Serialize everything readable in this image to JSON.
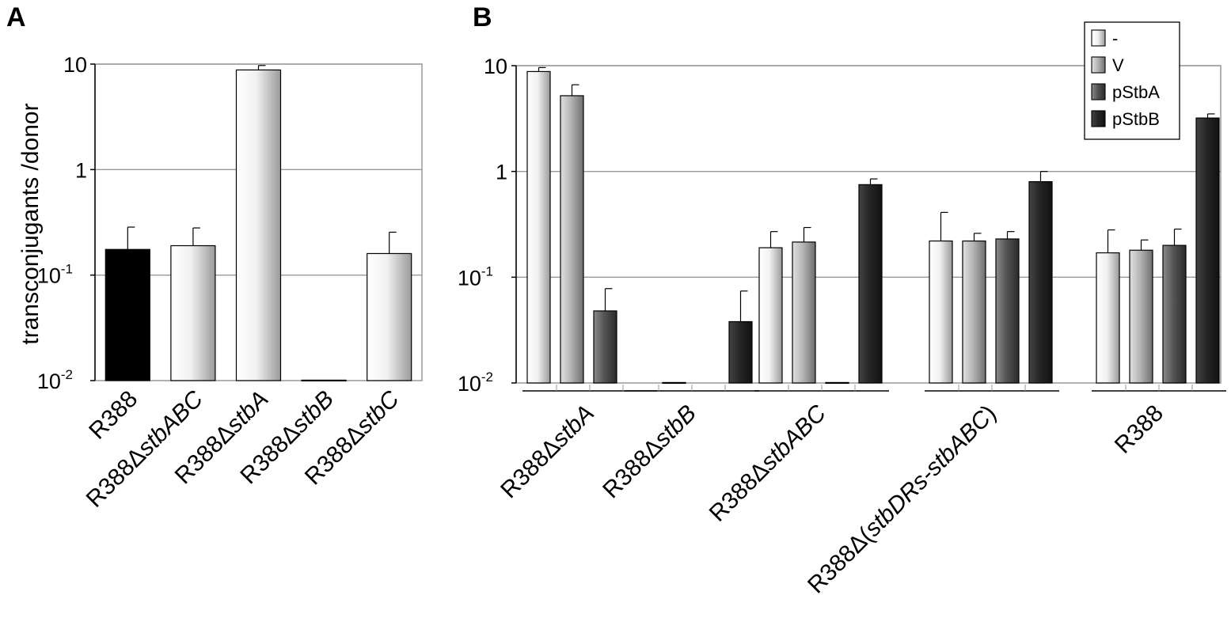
{
  "figure": {
    "panel_labels": [
      "A",
      "B"
    ]
  },
  "chart_data": [
    {
      "panel": "A",
      "type": "bar",
      "ylabel": "transconjugants /donor",
      "yscale": "log",
      "ylim": [
        0.01,
        10
      ],
      "yticks": [
        {
          "base": "10",
          "exp": ""
        },
        {
          "base": "1",
          "exp": ""
        },
        {
          "base": "10",
          "exp": "-1"
        },
        {
          "base": "10",
          "exp": "-2"
        }
      ],
      "grid": true,
      "categories": [
        {
          "prefix": "R388",
          "suffix": ""
        },
        {
          "prefix": "R388Δ",
          "suffix": "stbABC"
        },
        {
          "prefix": "R388Δ",
          "suffix": "stbA"
        },
        {
          "prefix": "R388Δ",
          "suffix": "stbB"
        },
        {
          "prefix": "R388Δ",
          "suffix": "stbC"
        }
      ],
      "values": [
        0.175,
        0.19,
        8.8,
        0.0101,
        0.16
      ],
      "errors": [
        0.11,
        0.09,
        0.9,
        0,
        0.095
      ],
      "colors": [
        "#000000",
        "#e4e4e4",
        "#e4e4e4",
        "#e4e4e4",
        "#e4e4e4"
      ]
    },
    {
      "panel": "B",
      "type": "bar",
      "yscale": "log",
      "ylim": [
        0.01,
        10
      ],
      "yticks": [
        {
          "base": "10",
          "exp": ""
        },
        {
          "base": "1",
          "exp": ""
        },
        {
          "base": "10",
          "exp": "-1"
        },
        {
          "base": "10",
          "exp": "-2"
        }
      ],
      "grid": true,
      "legend_position": "top-right",
      "categories": [
        {
          "prefix": "R388Δ",
          "suffix": "stbA",
          "close": ""
        },
        {
          "prefix": "R388Δ",
          "suffix": "stbB",
          "close": ""
        },
        {
          "prefix": "R388Δ",
          "suffix": "stbABC",
          "close": ""
        },
        {
          "prefix": "R388Δ(",
          "suffix": "stbDRs-stbABC",
          "close": ")"
        },
        {
          "prefix": "R388",
          "suffix": "",
          "close": ""
        }
      ],
      "series": [
        {
          "name": "-",
          "color": "#f2f2f2",
          "values": [
            8.8,
            null,
            0.19,
            0.22,
            0.17
          ],
          "errors": [
            0.8,
            null,
            0.08,
            0.19,
            0.11
          ]
        },
        {
          "name": "V",
          "color": "#b0b0b0",
          "values": [
            5.2,
            0.0101,
            0.215,
            0.22,
            0.18
          ],
          "errors": [
            1.4,
            0,
            0.08,
            0.04,
            0.045
          ]
        },
        {
          "name": "pStbA",
          "color": "#555555",
          "values": [
            0.048,
            null,
            0.0101,
            0.23,
            0.2
          ],
          "errors": [
            0.03,
            null,
            0,
            0.04,
            0.085
          ]
        },
        {
          "name": "pStbB",
          "color": "#262626",
          "values": [
            null,
            0.038,
            0.75,
            0.8,
            3.2
          ],
          "errors": [
            null,
            0.036,
            0.1,
            0.2,
            0.3
          ]
        }
      ],
      "notes": "R388ΔstbB group shows bars for V, pStbA-position and pStbB only; first bar of group 2 sits at baseline"
    }
  ]
}
